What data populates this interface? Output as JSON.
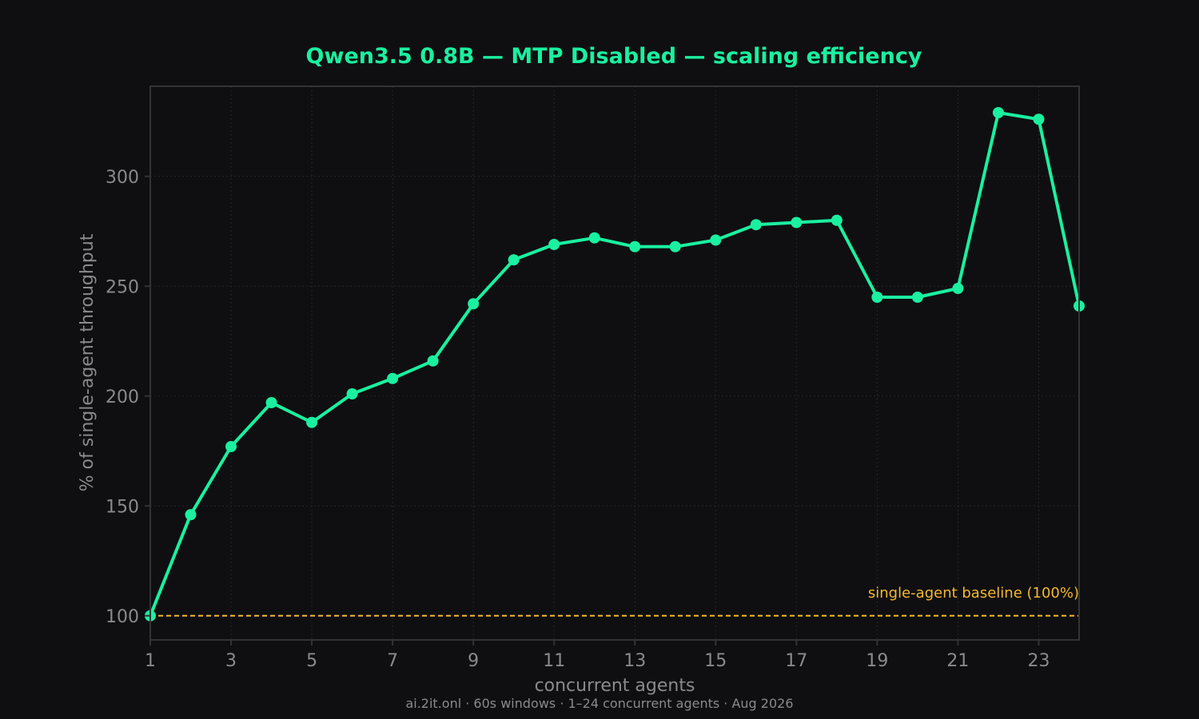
{
  "chart_data": {
    "type": "line",
    "title": "Qwen3.5 0.8B — MTP Disabled — scaling efficiency",
    "xlabel": "concurrent agents",
    "ylabel": "% of single-agent throughput",
    "footer": "ai.2it.onl · 60s windows · 1–24 concurrent agents · Aug 2026",
    "x": [
      1,
      2,
      3,
      4,
      5,
      6,
      7,
      8,
      9,
      10,
      11,
      12,
      13,
      14,
      15,
      16,
      17,
      18,
      19,
      20,
      21,
      22,
      23,
      24
    ],
    "series": [
      {
        "values": [
          100,
          146,
          177,
          197,
          188,
          201,
          208,
          216,
          242,
          262,
          269,
          272,
          268,
          268,
          271,
          278,
          279,
          280,
          245,
          245,
          249,
          329,
          326,
          241
        ],
        "color": "#1af0a0"
      }
    ],
    "xlim": [
      1,
      24
    ],
    "ylim": [
      89,
      341
    ],
    "xticks": [
      1,
      3,
      5,
      7,
      9,
      11,
      13,
      15,
      17,
      19,
      21,
      23
    ],
    "yticks": [
      100,
      150,
      200,
      250,
      300
    ],
    "grid": true,
    "baseline": {
      "value": 100,
      "label": "single-agent baseline (100%)",
      "color": "#f5b82e"
    },
    "colors": {
      "background": "#0f0f11",
      "frame": "#333333",
      "grid": "#262626",
      "text": "#8a8a8a"
    }
  }
}
